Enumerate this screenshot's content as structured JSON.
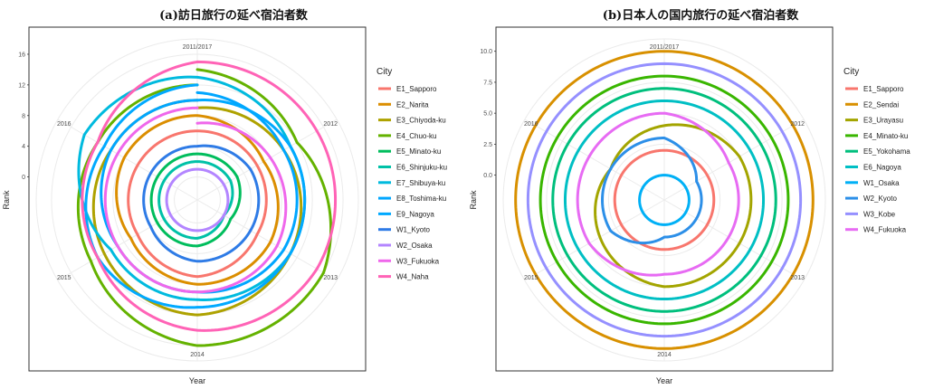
{
  "chart_data": [
    {
      "type": "polar-line",
      "title": "(a)訪日旅行の延べ宿泊者数",
      "xlabel": "Year",
      "ylabel": "Rank",
      "angle_labels": [
        "2011/2017",
        "2012",
        "2013",
        "2014",
        "2015",
        "2016"
      ],
      "rank_ticks": [
        0,
        4,
        8,
        12,
        16
      ],
      "rlim": [
        -3,
        18
      ],
      "legend_title": "City",
      "legend_position": "right",
      "grid": true,
      "years": [
        2011,
        2012,
        2013,
        2014,
        2015,
        2016,
        2017
      ],
      "series": [
        {
          "name": "E1_Sapporo",
          "color": "#F8766D",
          "values": [
            6,
            6,
            6,
            7,
            6,
            6,
            6
          ]
        },
        {
          "name": "E2_Narita",
          "color": "#DB8E00",
          "values": [
            8,
            7,
            8,
            8,
            7,
            8,
            8
          ]
        },
        {
          "name": "E3_Chiyoda-ku",
          "color": "#AEA200",
          "values": [
            9,
            10,
            11,
            12,
            11,
            10,
            10
          ]
        },
        {
          "name": "E4_Chuo-ku",
          "color": "#64B200",
          "values": [
            14,
            12,
            16,
            16,
            13,
            12,
            12
          ]
        },
        {
          "name": "E5_Minato-ku",
          "color": "#00BD5C",
          "values": [
            3,
            3,
            2,
            3,
            3,
            3,
            3
          ]
        },
        {
          "name": "E6_Shinjuku-ku",
          "color": "#00C1A7",
          "values": [
            2,
            2,
            1,
            2,
            2,
            2,
            2
          ]
        },
        {
          "name": "E7_Shibuya-ku",
          "color": "#00BADE",
          "values": [
            13,
            11,
            11,
            10,
            10,
            14,
            13
          ]
        },
        {
          "name": "E8_Toshima-ku",
          "color": "#00A6FF",
          "values": [
            11,
            10,
            10,
            9,
            9,
            10,
            10
          ]
        },
        {
          "name": "E9_Nagoya",
          "color": "#00A9FF",
          "values": [
            10,
            11,
            11,
            11,
            12,
            11,
            12
          ]
        },
        {
          "name": "W1_Kyoto",
          "color": "#2E7BE6",
          "values": [
            4,
            5,
            5,
            5,
            4,
            4,
            4
          ]
        },
        {
          "name": "W2_Osaka",
          "color": "#B385FF",
          "values": [
            1,
            1,
            1,
            1,
            1,
            1,
            1
          ]
        },
        {
          "name": "W3_Fukuoka",
          "color": "#EF67EB",
          "values": [
            7,
            8,
            9,
            9,
            9,
            9,
            9
          ]
        },
        {
          "name": "W4_Naha",
          "color": "#FF63B6",
          "values": [
            15,
            15,
            15,
            14,
            12,
            12,
            15
          ]
        }
      ]
    },
    {
      "type": "polar-line",
      "title": "(b)日本人の国内旅行の延べ宿泊者数",
      "xlabel": "Year",
      "ylabel": "Rank",
      "angle_labels": [
        "2011/2017",
        "2012",
        "2013",
        "2014",
        "2015",
        "2016"
      ],
      "rank_ticks": [
        "0.0",
        "2.5",
        "5.0",
        "7.5",
        "10.0"
      ],
      "rlim": [
        -2,
        11
      ],
      "legend_title": "City",
      "legend_position": "right",
      "grid": true,
      "years": [
        2011,
        2012,
        2013,
        2014,
        2015,
        2016,
        2017
      ],
      "series": [
        {
          "name": "E1_Sapporo",
          "color": "#F8766D",
          "values": [
            2,
            2,
            2,
            2,
            2,
            2,
            2
          ]
        },
        {
          "name": "E2_Sendai",
          "color": "#D89000",
          "values": [
            10,
            10,
            10,
            10,
            10,
            10,
            10
          ]
        },
        {
          "name": "E3_Urayasu",
          "color": "#A3A500",
          "values": [
            4,
            5,
            5,
            5,
            4,
            3,
            4
          ]
        },
        {
          "name": "E4_Minato-ku",
          "color": "#39B600",
          "values": [
            8,
            8,
            8,
            8,
            8,
            8,
            8
          ]
        },
        {
          "name": "E5_Yokohama",
          "color": "#00BF7D",
          "values": [
            7,
            7,
            7,
            7,
            7,
            7,
            7
          ]
        },
        {
          "name": "E6_Nagoya",
          "color": "#00BFC4",
          "values": [
            6,
            6,
            6,
            6,
            6,
            6,
            6
          ]
        },
        {
          "name": "W1_Osaka",
          "color": "#00B0F6",
          "values": [
            0,
            0,
            0,
            0,
            0,
            0,
            0
          ]
        },
        {
          "name": "W2_Kyoto",
          "color": "#2C8FE8",
          "values": [
            3,
            1,
            1,
            1,
            3,
            3,
            3
          ]
        },
        {
          "name": "W3_Kobe",
          "color": "#9590FF",
          "values": [
            9,
            9,
            9,
            9,
            9,
            9,
            9
          ]
        },
        {
          "name": "W4_Fukuoka",
          "color": "#E76BF3",
          "values": [
            5,
            4,
            4,
            4,
            5,
            5,
            5
          ]
        }
      ]
    }
  ]
}
